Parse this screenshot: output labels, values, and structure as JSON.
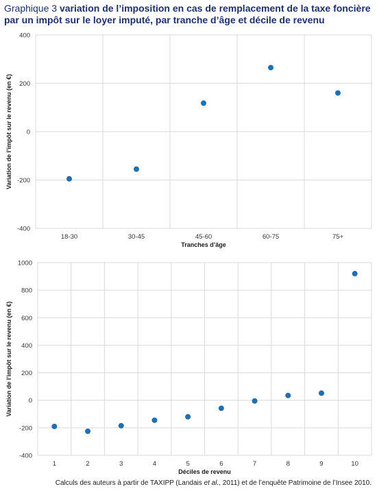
{
  "header": {
    "prefix": "Graphique 3 ",
    "title": "variation de l’imposition en cas de remplacement de la taxe foncière par un impôt sur le loyer imputé, par tranche d’âge et décile de revenu"
  },
  "chart_data": [
    {
      "type": "scatter",
      "categories": [
        "18-30",
        "30-45",
        "45-60",
        "60-75",
        "75+"
      ],
      "values": [
        -195,
        -155,
        118,
        265,
        160
      ],
      "xlabel": "Tranches d’âge",
      "ylabel": "Variation de l’impôt sur le revenu (en €)",
      "ylim": [
        -400,
        400
      ],
      "yticks": [
        -400,
        -200,
        0,
        200,
        400
      ],
      "grid": true,
      "color": "#1f6fb2"
    },
    {
      "type": "scatter",
      "categories": [
        "1",
        "2",
        "3",
        "4",
        "5",
        "6",
        "7",
        "8",
        "9",
        "10"
      ],
      "values": [
        -190,
        -225,
        -185,
        -145,
        -120,
        -58,
        -5,
        35,
        52,
        920
      ],
      "xlabel": "Déciles de revenu",
      "ylabel": "Variation de l’impôt sur le revenu (en €)",
      "ylim": [
        -400,
        1000
      ],
      "yticks": [
        -400,
        -200,
        0,
        200,
        400,
        600,
        800,
        1000
      ],
      "grid": true,
      "color": "#1f6fb2"
    }
  ],
  "source": {
    "before": "Calculs des auteurs à partir de TAXIPP (Landais ",
    "italic": "et al.",
    "after": ", 2011) et de l’enquête Patrimoine de l’Insee 2010."
  }
}
